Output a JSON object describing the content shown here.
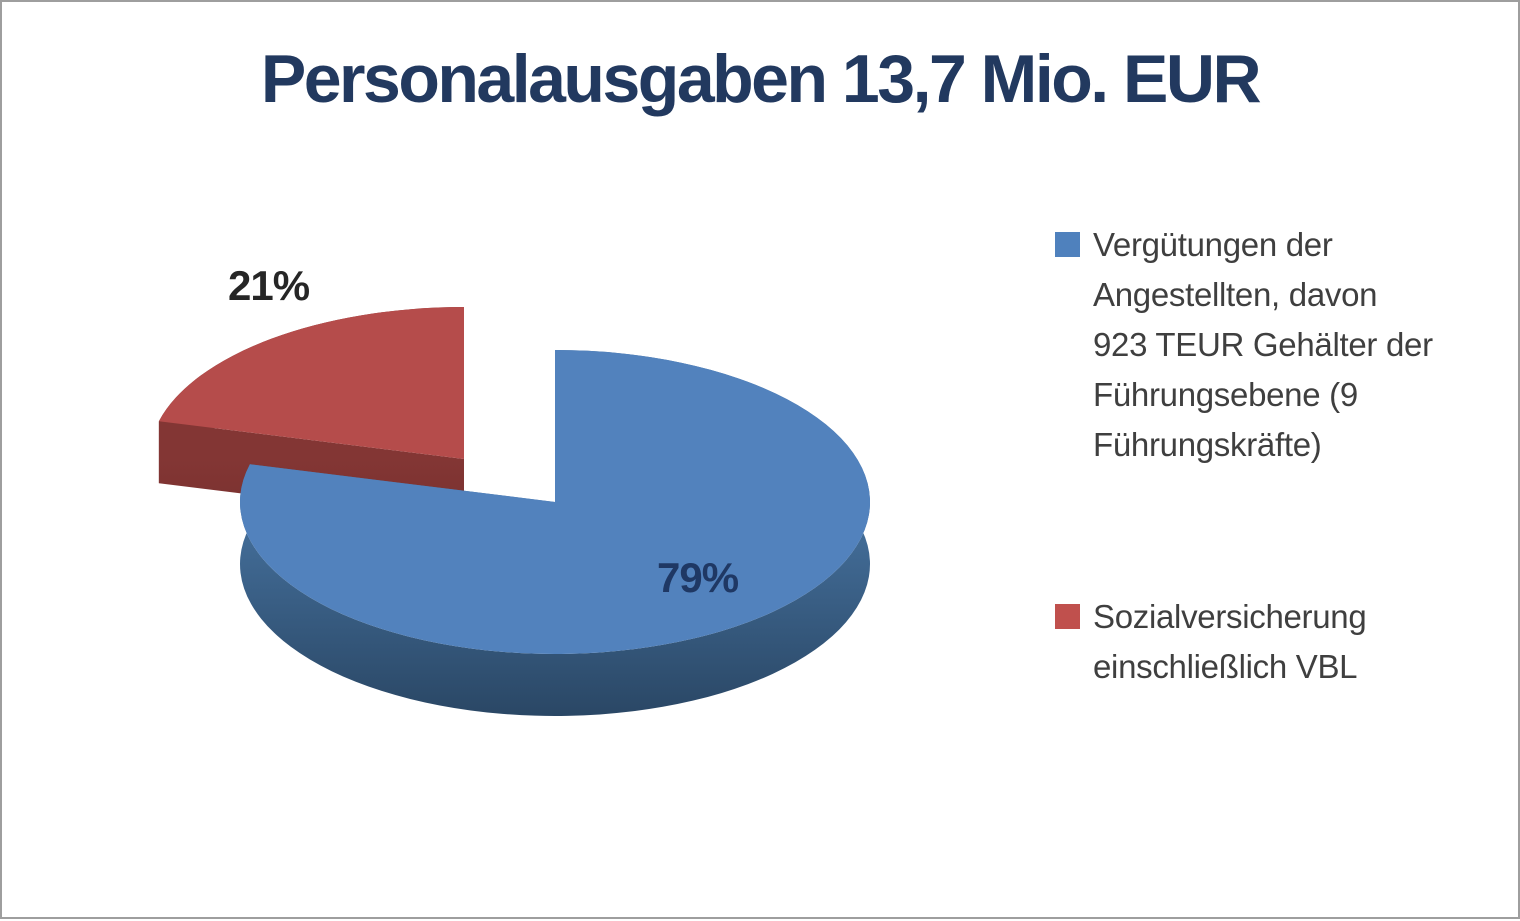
{
  "window": {
    "background": "#FFFFFF",
    "border_color": "#9E9E9E"
  },
  "chart_data": {
    "type": "pie",
    "three_d": true,
    "exploded": true,
    "title": "Personalausgaben 13,7 Mio. EUR",
    "title_color": "#22395F",
    "unit": "%",
    "start_angle_deg": 0,
    "clockwise": true,
    "legend_position": "right",
    "grid": false,
    "categories": [
      "Vergütungen der Angestellten, davon 923 TEUR Gehälter der Führungsebene (9 Führungskräfte)",
      "Sozialversicherung einschließlich VBL"
    ],
    "values": [
      79,
      21
    ],
    "slices": [
      {
        "key": "verguetungen",
        "label": "Vergütungen der Angestellten, davon 923 TEUR Gehälter der Führungsebene (9 Führungskräfte)",
        "value": 79,
        "pct_label": "79%",
        "color": "#5282BD",
        "side_top": "#46729F",
        "side_bottom": "#2A4765",
        "label_color": "#1F3864"
      },
      {
        "key": "sozialversicherung",
        "label": "Sozialversicherung einschließlich VBL",
        "value": 21,
        "pct_label": "21%",
        "color": "#B54C4B",
        "side_top": "#833634",
        "side_bottom": "#612423",
        "label_color": "#262626"
      }
    ]
  },
  "legend": {
    "text_color": "#3F3F3F",
    "items": [
      {
        "swatch_color": "#4F81BD",
        "lines": [
          "Vergütungen der",
          "Angestellten, davon",
          "923 TEUR Gehälter der",
          "Führungsebene (9",
          "Führungskräfte)"
        ]
      },
      {
        "swatch_color": "#C0504D",
        "lines": [
          "Sozialversicherung",
          "einschließlich VBL"
        ]
      }
    ]
  }
}
